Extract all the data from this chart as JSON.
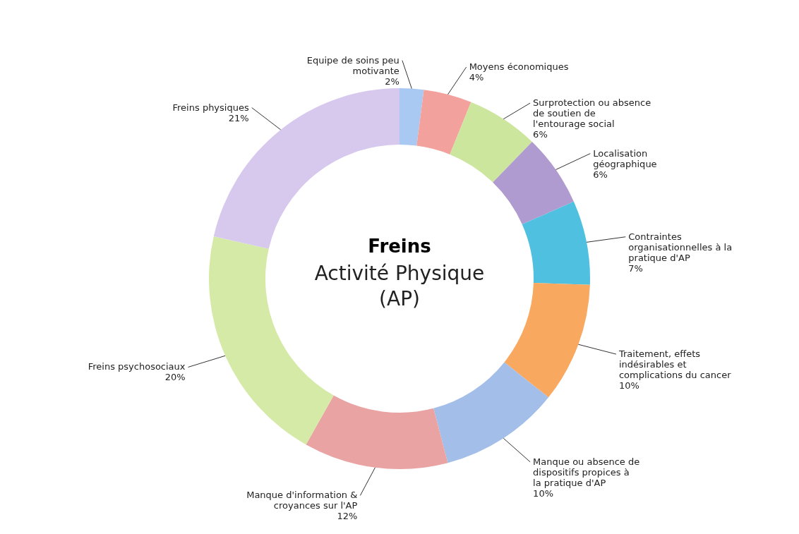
{
  "chart_data": {
    "type": "donut",
    "title": "Freins",
    "subtitle": "Activité Physique (AP)",
    "categories": [
      "Equipe de soins peu motivante",
      "Moyens économiques",
      "Surprotection ou absence de soutien de l'entourage social",
      "Localisation géographique",
      "Contraintes organisationnelles à la pratique d'AP",
      "Traitement, effets indésirables et complications du cancer",
      "Manque ou absence de dispositifs propices à la pratique d'AP",
      "Manque d'information & croyances sur l'AP",
      "Freins psychosociaux",
      "Freins physiques"
    ],
    "values": [
      2,
      4,
      6,
      6,
      7,
      10,
      10,
      12,
      20,
      21
    ],
    "value_labels": [
      "2%",
      "4%",
      "6%",
      "6%",
      "7%",
      "10%",
      "10%",
      "12%",
      "20%",
      "21%"
    ],
    "colors": [
      "#a9c8f2",
      "#f2a19c",
      "#cde69d",
      "#b09bd0",
      "#4fc0e0",
      "#f9a860",
      "#a3bee9",
      "#e9a3a3",
      "#d6eaa8",
      "#d7c8ee"
    ]
  }
}
